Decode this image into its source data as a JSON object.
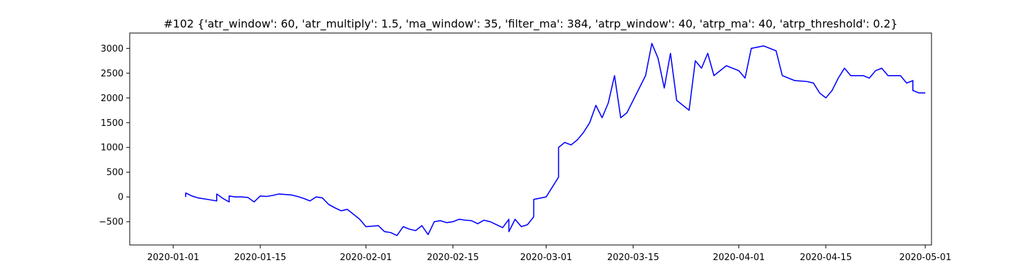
{
  "chart_data": {
    "type": "line",
    "title": "#102 {'atr_window': 60, 'atr_multiply': 1.5, 'ma_window': 35, 'filter_ma': 384, 'atrp_window': 40, 'atrp_ma': 40, 'atrp_threshold': 0.2}",
    "xlabel": "",
    "ylabel": "",
    "xlim": [
      "2019-12-25",
      "2020-05-02"
    ],
    "ylim": [
      -970,
      3310
    ],
    "grid": false,
    "legend": "none",
    "x_ticks": [
      "2020-01-01",
      "2020-01-15",
      "2020-02-01",
      "2020-02-15",
      "2020-03-01",
      "2020-03-15",
      "2020-04-01",
      "2020-04-15",
      "2020-05-01"
    ],
    "y_ticks": [
      -500,
      0,
      500,
      1000,
      1500,
      2000,
      2500,
      3000
    ],
    "series": [
      {
        "color": "#0000ff",
        "points": [
          [
            "2020-01-03",
            0
          ],
          [
            "2020-01-03",
            80
          ],
          [
            "2020-01-04",
            20
          ],
          [
            "2020-01-05",
            -20
          ],
          [
            "2020-01-07",
            -60
          ],
          [
            "2020-01-08",
            -80
          ],
          [
            "2020-01-08",
            60
          ],
          [
            "2020-01-09",
            -30
          ],
          [
            "2020-01-10",
            -100
          ],
          [
            "2020-01-10",
            20
          ],
          [
            "2020-01-11",
            0
          ],
          [
            "2020-01-12",
            0
          ],
          [
            "2020-01-13",
            -10
          ],
          [
            "2020-01-14",
            -100
          ],
          [
            "2020-01-15",
            20
          ],
          [
            "2020-01-16",
            10
          ],
          [
            "2020-01-17",
            30
          ],
          [
            "2020-01-18",
            60
          ],
          [
            "2020-01-20",
            40
          ],
          [
            "2020-01-21",
            10
          ],
          [
            "2020-01-22",
            -30
          ],
          [
            "2020-01-23",
            -80
          ],
          [
            "2020-01-24",
            0
          ],
          [
            "2020-01-25",
            -20
          ],
          [
            "2020-01-26",
            -150
          ],
          [
            "2020-01-27",
            -220
          ],
          [
            "2020-01-28",
            -280
          ],
          [
            "2020-01-29",
            -250
          ],
          [
            "2020-01-30",
            -350
          ],
          [
            "2020-01-31",
            -450
          ],
          [
            "2020-02-01",
            -600
          ],
          [
            "2020-02-03",
            -580
          ],
          [
            "2020-02-04",
            -700
          ],
          [
            "2020-02-05",
            -720
          ],
          [
            "2020-02-06",
            -780
          ],
          [
            "2020-02-07",
            -600
          ],
          [
            "2020-02-08",
            -650
          ],
          [
            "2020-02-09",
            -680
          ],
          [
            "2020-02-10",
            -580
          ],
          [
            "2020-02-11",
            -760
          ],
          [
            "2020-02-12",
            -500
          ],
          [
            "2020-02-13",
            -480
          ],
          [
            "2020-02-14",
            -520
          ],
          [
            "2020-02-15",
            -500
          ],
          [
            "2020-02-16",
            -450
          ],
          [
            "2020-02-17",
            -470
          ],
          [
            "2020-02-18",
            -480
          ],
          [
            "2020-02-19",
            -540
          ],
          [
            "2020-02-20",
            -470
          ],
          [
            "2020-02-21",
            -500
          ],
          [
            "2020-02-22",
            -560
          ],
          [
            "2020-02-23",
            -620
          ],
          [
            "2020-02-24",
            -450
          ],
          [
            "2020-02-24",
            -700
          ],
          [
            "2020-02-25",
            -450
          ],
          [
            "2020-02-26",
            -600
          ],
          [
            "2020-02-27",
            -560
          ],
          [
            "2020-02-28",
            -400
          ],
          [
            "2020-02-28",
            -50
          ],
          [
            "2020-03-01",
            0
          ],
          [
            "2020-03-02",
            200
          ],
          [
            "2020-03-03",
            400
          ],
          [
            "2020-03-03",
            1000
          ],
          [
            "2020-03-04",
            1100
          ],
          [
            "2020-03-05",
            1050
          ],
          [
            "2020-03-06",
            1150
          ],
          [
            "2020-03-07",
            1300
          ],
          [
            "2020-03-08",
            1500
          ],
          [
            "2020-03-09",
            1850
          ],
          [
            "2020-03-10",
            1600
          ],
          [
            "2020-03-11",
            1900
          ],
          [
            "2020-03-12",
            2450
          ],
          [
            "2020-03-13",
            1600
          ],
          [
            "2020-03-14",
            1700
          ],
          [
            "2020-03-17",
            2450
          ],
          [
            "2020-03-18",
            3100
          ],
          [
            "2020-03-19",
            2800
          ],
          [
            "2020-03-20",
            2200
          ],
          [
            "2020-03-21",
            2900
          ],
          [
            "2020-03-22",
            1950
          ],
          [
            "2020-03-24",
            1750
          ],
          [
            "2020-03-25",
            2750
          ],
          [
            "2020-03-26",
            2600
          ],
          [
            "2020-03-27",
            2900
          ],
          [
            "2020-03-28",
            2450
          ],
          [
            "2020-03-30",
            2650
          ],
          [
            "2020-04-01",
            2550
          ],
          [
            "2020-04-02",
            2400
          ],
          [
            "2020-04-03",
            3000
          ],
          [
            "2020-04-05",
            3050
          ],
          [
            "2020-04-07",
            2950
          ],
          [
            "2020-04-08",
            2450
          ],
          [
            "2020-04-09",
            2400
          ],
          [
            "2020-04-10",
            2350
          ],
          [
            "2020-04-12",
            2330
          ],
          [
            "2020-04-13",
            2300
          ],
          [
            "2020-04-14",
            2100
          ],
          [
            "2020-04-15",
            2000
          ],
          [
            "2020-04-16",
            2150
          ],
          [
            "2020-04-17",
            2400
          ],
          [
            "2020-04-18",
            2600
          ],
          [
            "2020-04-19",
            2450
          ],
          [
            "2020-04-21",
            2450
          ],
          [
            "2020-04-22",
            2400
          ],
          [
            "2020-04-23",
            2550
          ],
          [
            "2020-04-24",
            2600
          ],
          [
            "2020-04-25",
            2450
          ],
          [
            "2020-04-27",
            2450
          ],
          [
            "2020-04-28",
            2300
          ],
          [
            "2020-04-29",
            2350
          ],
          [
            "2020-04-29",
            2150
          ],
          [
            "2020-04-30",
            2100
          ],
          [
            "2020-05-01",
            2100
          ]
        ]
      }
    ]
  }
}
